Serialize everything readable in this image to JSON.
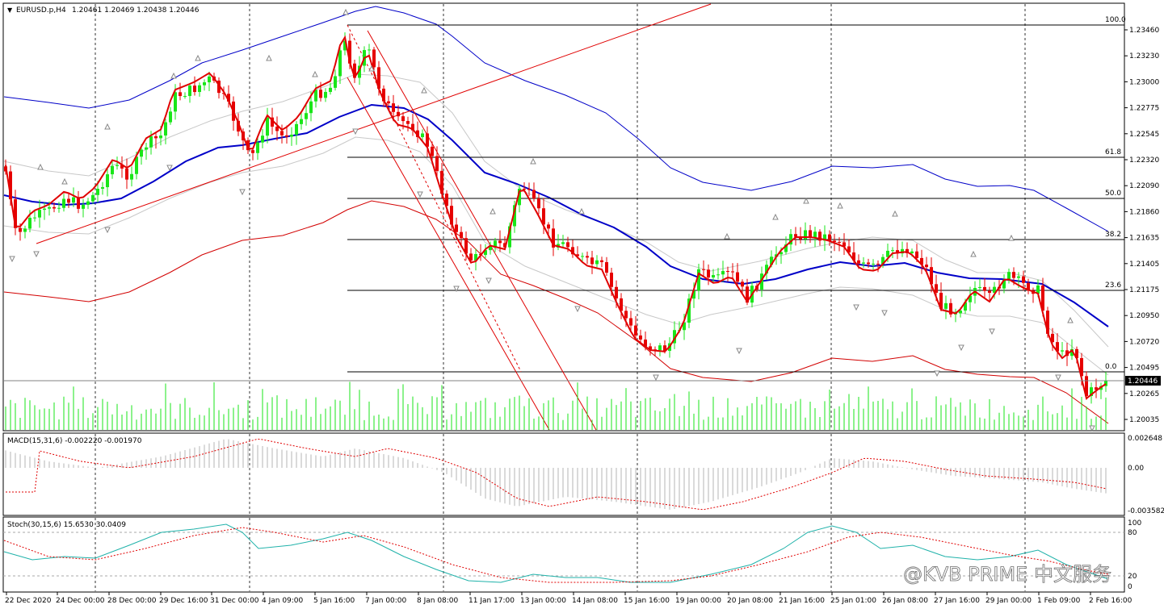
{
  "main": {
    "symbol": "EURUSD.p,H4",
    "ohlc": "1.20461 1.20469 1.20438 1.20446",
    "price_labels": [
      "1.23460",
      "1.23230",
      "1.23000",
      "1.22775",
      "1.22545",
      "1.22320",
      "1.22090",
      "1.21860",
      "1.21635",
      "1.21405",
      "1.21175",
      "1.20950",
      "1.20720",
      "1.20495",
      "1.20265",
      "1.20035"
    ],
    "current_price": "1.20446",
    "fib_levels": [
      "100.0",
      "61.8",
      "50.0",
      "38.2",
      "23.6",
      "0.0"
    ]
  },
  "macd": {
    "title": "MACD(15,31,6) -0.002220 -0.001970",
    "labels": [
      "0.002648",
      "0.00",
      "-0.003582"
    ]
  },
  "stoch": {
    "title": "Stoch(30,15,6) 15.6530 30.0409",
    "labels": [
      "100",
      "80",
      "20",
      "0"
    ]
  },
  "time_labels": [
    "22 Dec 2020",
    "24 Dec 00:00",
    "28 Dec 00:00",
    "29 Dec 16:00",
    "31 Dec 00:00",
    "4 Jan 09:00",
    "5 Jan 16:00",
    "7 Jan 00:00",
    "8 Jan 08:00",
    "11 Jan 17:00",
    "13 Jan 00:00",
    "14 Jan 08:00",
    "15 Jan 16:00",
    "19 Jan 00:00",
    "20 Jan 08:00",
    "21 Jan 16:00",
    "25 Jan 01:00",
    "26 Jan 08:00",
    "27 Jan 16:00",
    "29 Jan 00:00",
    "1 Feb 09:00",
    "2 Feb 16:00"
  ],
  "watermark": "@KVB PRIME 中文服务",
  "colors": {
    "bull": "#19e619",
    "bear": "#e60000",
    "ma_blue": "#0000c8",
    "band_blue": "#0000c8",
    "band_red": "#d20000",
    "volume": "#19e619"
  }
}
